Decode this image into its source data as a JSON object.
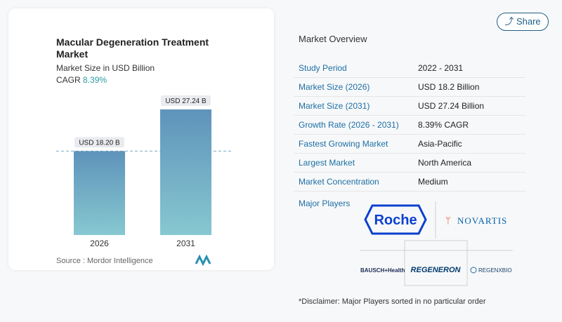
{
  "chart_data": {
    "type": "bar",
    "title": "Macular Degeneration Treatment Market",
    "subtitle": "Market Size in USD Billion",
    "cagr_label": "CAGR",
    "cagr": "8.39%",
    "categories": [
      "2026",
      "2031"
    ],
    "values": [
      18.2,
      27.24
    ],
    "value_labels": [
      "USD 18.20 B",
      "USD 27.24 B"
    ],
    "color": "#5f93bb",
    "source": "Source :  Mordor Intelligence"
  },
  "share": "Share",
  "overview": {
    "title": "Market Overview",
    "rows": [
      [
        "Study Period",
        "2022 - 2031"
      ],
      [
        "Market Size (2026)",
        "USD 18.2 Billion"
      ],
      [
        "Market Size (2031)",
        "USD 27.24 Billion"
      ],
      [
        "Growth Rate (2026 - 2031)",
        "8.39% CAGR"
      ],
      [
        "Fastest Growing Market",
        "Asia-Pacific"
      ],
      [
        "Largest Market",
        "North America"
      ],
      [
        "Market Concentration",
        "Medium"
      ]
    ]
  },
  "players": {
    "title": "Major Players",
    "logos": [
      "Roche",
      "NOVARTIS",
      "BAUSCH+Health",
      "REGENERON",
      "REGENXBIO"
    ]
  },
  "disclaimer": "*Disclaimer: Major Players sorted in no particular order"
}
